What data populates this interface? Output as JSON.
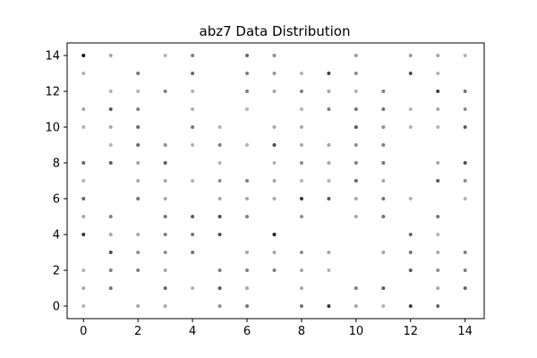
{
  "chart_data": {
    "type": "scatter",
    "title": "abz7 Data Distribution",
    "xlabel": "",
    "ylabel": "",
    "xlim": [
      -0.6,
      14.7
    ],
    "ylim": [
      -0.7,
      14.7
    ],
    "xticks": [
      0,
      2,
      4,
      6,
      8,
      10,
      12,
      14
    ],
    "yticks": [
      0,
      2,
      4,
      6,
      8,
      10,
      12,
      14
    ],
    "grid": false,
    "marker_color": "#000000",
    "points": [
      {
        "x": 0,
        "y": 14,
        "alpha": 0.9
      },
      {
        "x": 1,
        "y": 14,
        "alpha": 0.35
      },
      {
        "x": 3,
        "y": 14,
        "alpha": 0.3
      },
      {
        "x": 4,
        "y": 14,
        "alpha": 0.5
      },
      {
        "x": 6,
        "y": 14,
        "alpha": 0.6
      },
      {
        "x": 7,
        "y": 14,
        "alpha": 0.45
      },
      {
        "x": 10,
        "y": 14,
        "alpha": 0.4
      },
      {
        "x": 12,
        "y": 14,
        "alpha": 0.4
      },
      {
        "x": 13,
        "y": 14,
        "alpha": 0.35
      },
      {
        "x": 14,
        "y": 14,
        "alpha": 0.3
      },
      {
        "x": 0,
        "y": 13,
        "alpha": 0.3
      },
      {
        "x": 2,
        "y": 13,
        "alpha": 0.55
      },
      {
        "x": 4,
        "y": 13,
        "alpha": 0.6
      },
      {
        "x": 6,
        "y": 13,
        "alpha": 0.5
      },
      {
        "x": 7,
        "y": 13,
        "alpha": 0.4
      },
      {
        "x": 8,
        "y": 13,
        "alpha": 0.3
      },
      {
        "x": 9,
        "y": 13,
        "alpha": 0.75
      },
      {
        "x": 10,
        "y": 13,
        "alpha": 0.45
      },
      {
        "x": 12,
        "y": 13,
        "alpha": 0.7
      },
      {
        "x": 13,
        "y": 13,
        "alpha": 0.3
      },
      {
        "x": 1,
        "y": 12,
        "alpha": 0.3
      },
      {
        "x": 2,
        "y": 12,
        "alpha": 0.3
      },
      {
        "x": 3,
        "y": 12,
        "alpha": 0.5
      },
      {
        "x": 4,
        "y": 12,
        "alpha": 0.3
      },
      {
        "x": 6,
        "y": 12,
        "alpha": 0.5
      },
      {
        "x": 7,
        "y": 12,
        "alpha": 0.35
      },
      {
        "x": 8,
        "y": 12,
        "alpha": 0.5
      },
      {
        "x": 9,
        "y": 12,
        "alpha": 0.35
      },
      {
        "x": 10,
        "y": 12,
        "alpha": 0.3
      },
      {
        "x": 11,
        "y": 12,
        "alpha": 0.5
      },
      {
        "x": 13,
        "y": 12,
        "alpha": 0.75
      },
      {
        "x": 14,
        "y": 12,
        "alpha": 0.55
      },
      {
        "x": 0,
        "y": 11,
        "alpha": 0.35
      },
      {
        "x": 1,
        "y": 11,
        "alpha": 0.65
      },
      {
        "x": 2,
        "y": 11,
        "alpha": 0.5
      },
      {
        "x": 4,
        "y": 11,
        "alpha": 0.3
      },
      {
        "x": 6,
        "y": 11,
        "alpha": 0.3
      },
      {
        "x": 8,
        "y": 11,
        "alpha": 0.3
      },
      {
        "x": 9,
        "y": 11,
        "alpha": 0.5
      },
      {
        "x": 10,
        "y": 11,
        "alpha": 0.55
      },
      {
        "x": 11,
        "y": 11,
        "alpha": 0.55
      },
      {
        "x": 12,
        "y": 11,
        "alpha": 0.3
      },
      {
        "x": 13,
        "y": 11,
        "alpha": 0.35
      },
      {
        "x": 14,
        "y": 11,
        "alpha": 0.45
      },
      {
        "x": 0,
        "y": 10,
        "alpha": 0.3
      },
      {
        "x": 1,
        "y": 10,
        "alpha": 0.35
      },
      {
        "x": 2,
        "y": 10,
        "alpha": 0.6
      },
      {
        "x": 4,
        "y": 10,
        "alpha": 0.55
      },
      {
        "x": 5,
        "y": 10,
        "alpha": 0.3
      },
      {
        "x": 7,
        "y": 10,
        "alpha": 0.35
      },
      {
        "x": 8,
        "y": 10,
        "alpha": 0.35
      },
      {
        "x": 10,
        "y": 10,
        "alpha": 0.65
      },
      {
        "x": 11,
        "y": 10,
        "alpha": 0.45
      },
      {
        "x": 12,
        "y": 10,
        "alpha": 0.3
      },
      {
        "x": 13,
        "y": 10,
        "alpha": 0.3
      },
      {
        "x": 14,
        "y": 10,
        "alpha": 0.65
      },
      {
        "x": 1,
        "y": 9,
        "alpha": 0.3
      },
      {
        "x": 2,
        "y": 9,
        "alpha": 0.6
      },
      {
        "x": 3,
        "y": 9,
        "alpha": 0.45
      },
      {
        "x": 4,
        "y": 9,
        "alpha": 0.3
      },
      {
        "x": 5,
        "y": 9,
        "alpha": 0.5
      },
      {
        "x": 6,
        "y": 9,
        "alpha": 0.3
      },
      {
        "x": 7,
        "y": 9,
        "alpha": 0.7
      },
      {
        "x": 8,
        "y": 9,
        "alpha": 0.35
      },
      {
        "x": 9,
        "y": 9,
        "alpha": 0.35
      },
      {
        "x": 10,
        "y": 9,
        "alpha": 0.45
      },
      {
        "x": 11,
        "y": 9,
        "alpha": 0.5
      },
      {
        "x": 0,
        "y": 8,
        "alpha": 0.6
      },
      {
        "x": 1,
        "y": 8,
        "alpha": 0.65
      },
      {
        "x": 2,
        "y": 8,
        "alpha": 0.35
      },
      {
        "x": 3,
        "y": 8,
        "alpha": 0.65
      },
      {
        "x": 5,
        "y": 8,
        "alpha": 0.3
      },
      {
        "x": 7,
        "y": 8,
        "alpha": 0.3
      },
      {
        "x": 8,
        "y": 8,
        "alpha": 0.45
      },
      {
        "x": 9,
        "y": 8,
        "alpha": 0.35
      },
      {
        "x": 10,
        "y": 8,
        "alpha": 0.5
      },
      {
        "x": 11,
        "y": 8,
        "alpha": 0.55
      },
      {
        "x": 13,
        "y": 8,
        "alpha": 0.35
      },
      {
        "x": 14,
        "y": 8,
        "alpha": 0.7
      },
      {
        "x": 0,
        "y": 7,
        "alpha": 0.3
      },
      {
        "x": 2,
        "y": 7,
        "alpha": 0.35
      },
      {
        "x": 3,
        "y": 7,
        "alpha": 0.35
      },
      {
        "x": 4,
        "y": 7,
        "alpha": 0.3
      },
      {
        "x": 5,
        "y": 7,
        "alpha": 0.45
      },
      {
        "x": 6,
        "y": 7,
        "alpha": 0.5
      },
      {
        "x": 7,
        "y": 7,
        "alpha": 0.35
      },
      {
        "x": 8,
        "y": 7,
        "alpha": 0.3
      },
      {
        "x": 9,
        "y": 7,
        "alpha": 0.3
      },
      {
        "x": 10,
        "y": 7,
        "alpha": 0.6
      },
      {
        "x": 11,
        "y": 7,
        "alpha": 0.35
      },
      {
        "x": 13,
        "y": 7,
        "alpha": 0.65
      },
      {
        "x": 14,
        "y": 7,
        "alpha": 0.45
      },
      {
        "x": 0,
        "y": 6,
        "alpha": 0.6
      },
      {
        "x": 2,
        "y": 6,
        "alpha": 0.55
      },
      {
        "x": 3,
        "y": 6,
        "alpha": 0.35
      },
      {
        "x": 5,
        "y": 6,
        "alpha": 0.35
      },
      {
        "x": 6,
        "y": 6,
        "alpha": 0.35
      },
      {
        "x": 7,
        "y": 6,
        "alpha": 0.35
      },
      {
        "x": 8,
        "y": 6,
        "alpha": 0.8
      },
      {
        "x": 9,
        "y": 6,
        "alpha": 0.65
      },
      {
        "x": 10,
        "y": 6,
        "alpha": 0.35
      },
      {
        "x": 11,
        "y": 6,
        "alpha": 0.55
      },
      {
        "x": 12,
        "y": 6,
        "alpha": 0.3
      },
      {
        "x": 14,
        "y": 6,
        "alpha": 0.3
      },
      {
        "x": 0,
        "y": 5,
        "alpha": 0.35
      },
      {
        "x": 1,
        "y": 5,
        "alpha": 0.5
      },
      {
        "x": 3,
        "y": 5,
        "alpha": 0.55
      },
      {
        "x": 4,
        "y": 5,
        "alpha": 0.65
      },
      {
        "x": 5,
        "y": 5,
        "alpha": 0.7
      },
      {
        "x": 6,
        "y": 5,
        "alpha": 0.5
      },
      {
        "x": 8,
        "y": 5,
        "alpha": 0.45
      },
      {
        "x": 10,
        "y": 5,
        "alpha": 0.35
      },
      {
        "x": 11,
        "y": 5,
        "alpha": 0.55
      },
      {
        "x": 13,
        "y": 5,
        "alpha": 0.55
      },
      {
        "x": 0,
        "y": 4,
        "alpha": 0.8
      },
      {
        "x": 1,
        "y": 4,
        "alpha": 0.35
      },
      {
        "x": 2,
        "y": 4,
        "alpha": 0.35
      },
      {
        "x": 3,
        "y": 4,
        "alpha": 0.5
      },
      {
        "x": 4,
        "y": 4,
        "alpha": 0.55
      },
      {
        "x": 5,
        "y": 4,
        "alpha": 0.7
      },
      {
        "x": 7,
        "y": 4,
        "alpha": 0.9
      },
      {
        "x": 12,
        "y": 4,
        "alpha": 0.6
      },
      {
        "x": 13,
        "y": 4,
        "alpha": 0.3
      },
      {
        "x": 1,
        "y": 3,
        "alpha": 0.7
      },
      {
        "x": 2,
        "y": 3,
        "alpha": 0.45
      },
      {
        "x": 3,
        "y": 3,
        "alpha": 0.45
      },
      {
        "x": 4,
        "y": 3,
        "alpha": 0.55
      },
      {
        "x": 6,
        "y": 3,
        "alpha": 0.35
      },
      {
        "x": 7,
        "y": 3,
        "alpha": 0.35
      },
      {
        "x": 8,
        "y": 3,
        "alpha": 0.45
      },
      {
        "x": 9,
        "y": 3,
        "alpha": 0.35
      },
      {
        "x": 11,
        "y": 3,
        "alpha": 0.35
      },
      {
        "x": 12,
        "y": 3,
        "alpha": 0.55
      },
      {
        "x": 13,
        "y": 3,
        "alpha": 0.35
      },
      {
        "x": 14,
        "y": 3,
        "alpha": 0.5
      },
      {
        "x": 0,
        "y": 2,
        "alpha": 0.3
      },
      {
        "x": 1,
        "y": 2,
        "alpha": 0.5
      },
      {
        "x": 2,
        "y": 2,
        "alpha": 0.5
      },
      {
        "x": 3,
        "y": 2,
        "alpha": 0.35
      },
      {
        "x": 5,
        "y": 2,
        "alpha": 0.5
      },
      {
        "x": 6,
        "y": 2,
        "alpha": 0.5
      },
      {
        "x": 7,
        "y": 2,
        "alpha": 0.5
      },
      {
        "x": 8,
        "y": 2,
        "alpha": 0.35
      },
      {
        "x": 9,
        "y": 2,
        "alpha": 0.3
      },
      {
        "x": 12,
        "y": 2,
        "alpha": 0.65
      },
      {
        "x": 13,
        "y": 2,
        "alpha": 0.45
      },
      {
        "x": 14,
        "y": 2,
        "alpha": 0.5
      },
      {
        "x": 0,
        "y": 1,
        "alpha": 0.35
      },
      {
        "x": 1,
        "y": 1,
        "alpha": 0.55
      },
      {
        "x": 3,
        "y": 1,
        "alpha": 0.6
      },
      {
        "x": 4,
        "y": 1,
        "alpha": 0.3
      },
      {
        "x": 5,
        "y": 1,
        "alpha": 0.65
      },
      {
        "x": 6,
        "y": 1,
        "alpha": 0.35
      },
      {
        "x": 8,
        "y": 1,
        "alpha": 0.35
      },
      {
        "x": 10,
        "y": 1,
        "alpha": 0.5
      },
      {
        "x": 11,
        "y": 1,
        "alpha": 0.65
      },
      {
        "x": 13,
        "y": 1,
        "alpha": 0.35
      },
      {
        "x": 14,
        "y": 1,
        "alpha": 0.6
      },
      {
        "x": 0,
        "y": 0,
        "alpha": 0.3
      },
      {
        "x": 2,
        "y": 0,
        "alpha": 0.35
      },
      {
        "x": 3,
        "y": 0,
        "alpha": 0.35
      },
      {
        "x": 5,
        "y": 0,
        "alpha": 0.45
      },
      {
        "x": 6,
        "y": 0,
        "alpha": 0.55
      },
      {
        "x": 8,
        "y": 0,
        "alpha": 0.55
      },
      {
        "x": 9,
        "y": 0,
        "alpha": 0.8
      },
      {
        "x": 10,
        "y": 0,
        "alpha": 0.35
      },
      {
        "x": 11,
        "y": 0,
        "alpha": 0.3
      },
      {
        "x": 12,
        "y": 0,
        "alpha": 0.75
      },
      {
        "x": 13,
        "y": 0,
        "alpha": 0.6
      }
    ]
  }
}
